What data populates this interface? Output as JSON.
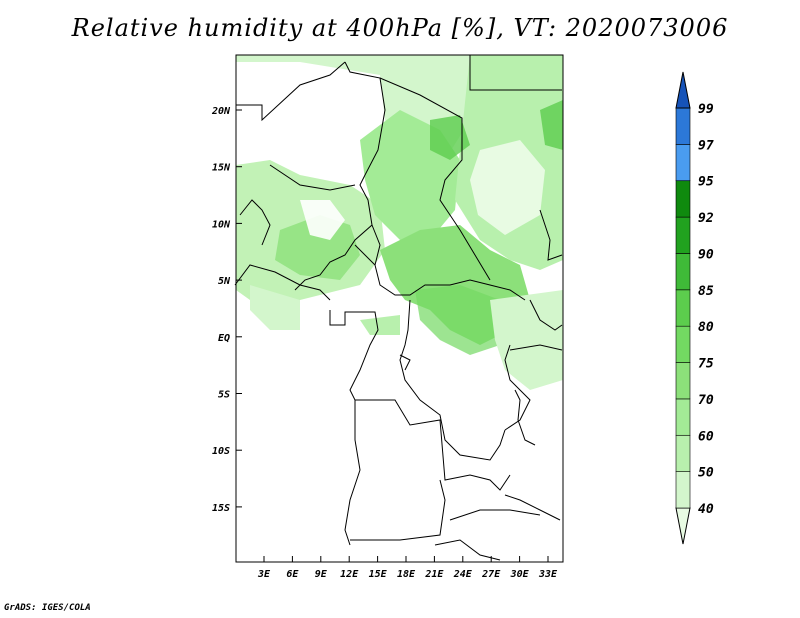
{
  "title": "Relative humidity at 400hPa [%], VT: 2020073006",
  "credit": "GrADS: IGES/COLA",
  "map": {
    "lat_labels": [
      "20N",
      "15N",
      "10N",
      "5N",
      "EQ",
      "5S",
      "10S",
      "15S"
    ],
    "lon_labels": [
      "3E",
      "6E",
      "9E",
      "12E",
      "15E",
      "18E",
      "21E",
      "24E",
      "27E",
      "30E",
      "33E"
    ]
  },
  "colorbar": {
    "levels": [
      "40",
      "50",
      "60",
      "70",
      "75",
      "80",
      "85",
      "90",
      "92",
      "95",
      "97",
      "99"
    ],
    "colors": [
      "#e8fbe3",
      "#d3f6cc",
      "#b8f0ad",
      "#a3eb96",
      "#8ce07a",
      "#73d962",
      "#5ccd4d",
      "#3fba38",
      "#21a21f",
      "#0f8a0e",
      "#4a9cf0",
      "#2c78d8",
      "#1653b8"
    ]
  }
}
